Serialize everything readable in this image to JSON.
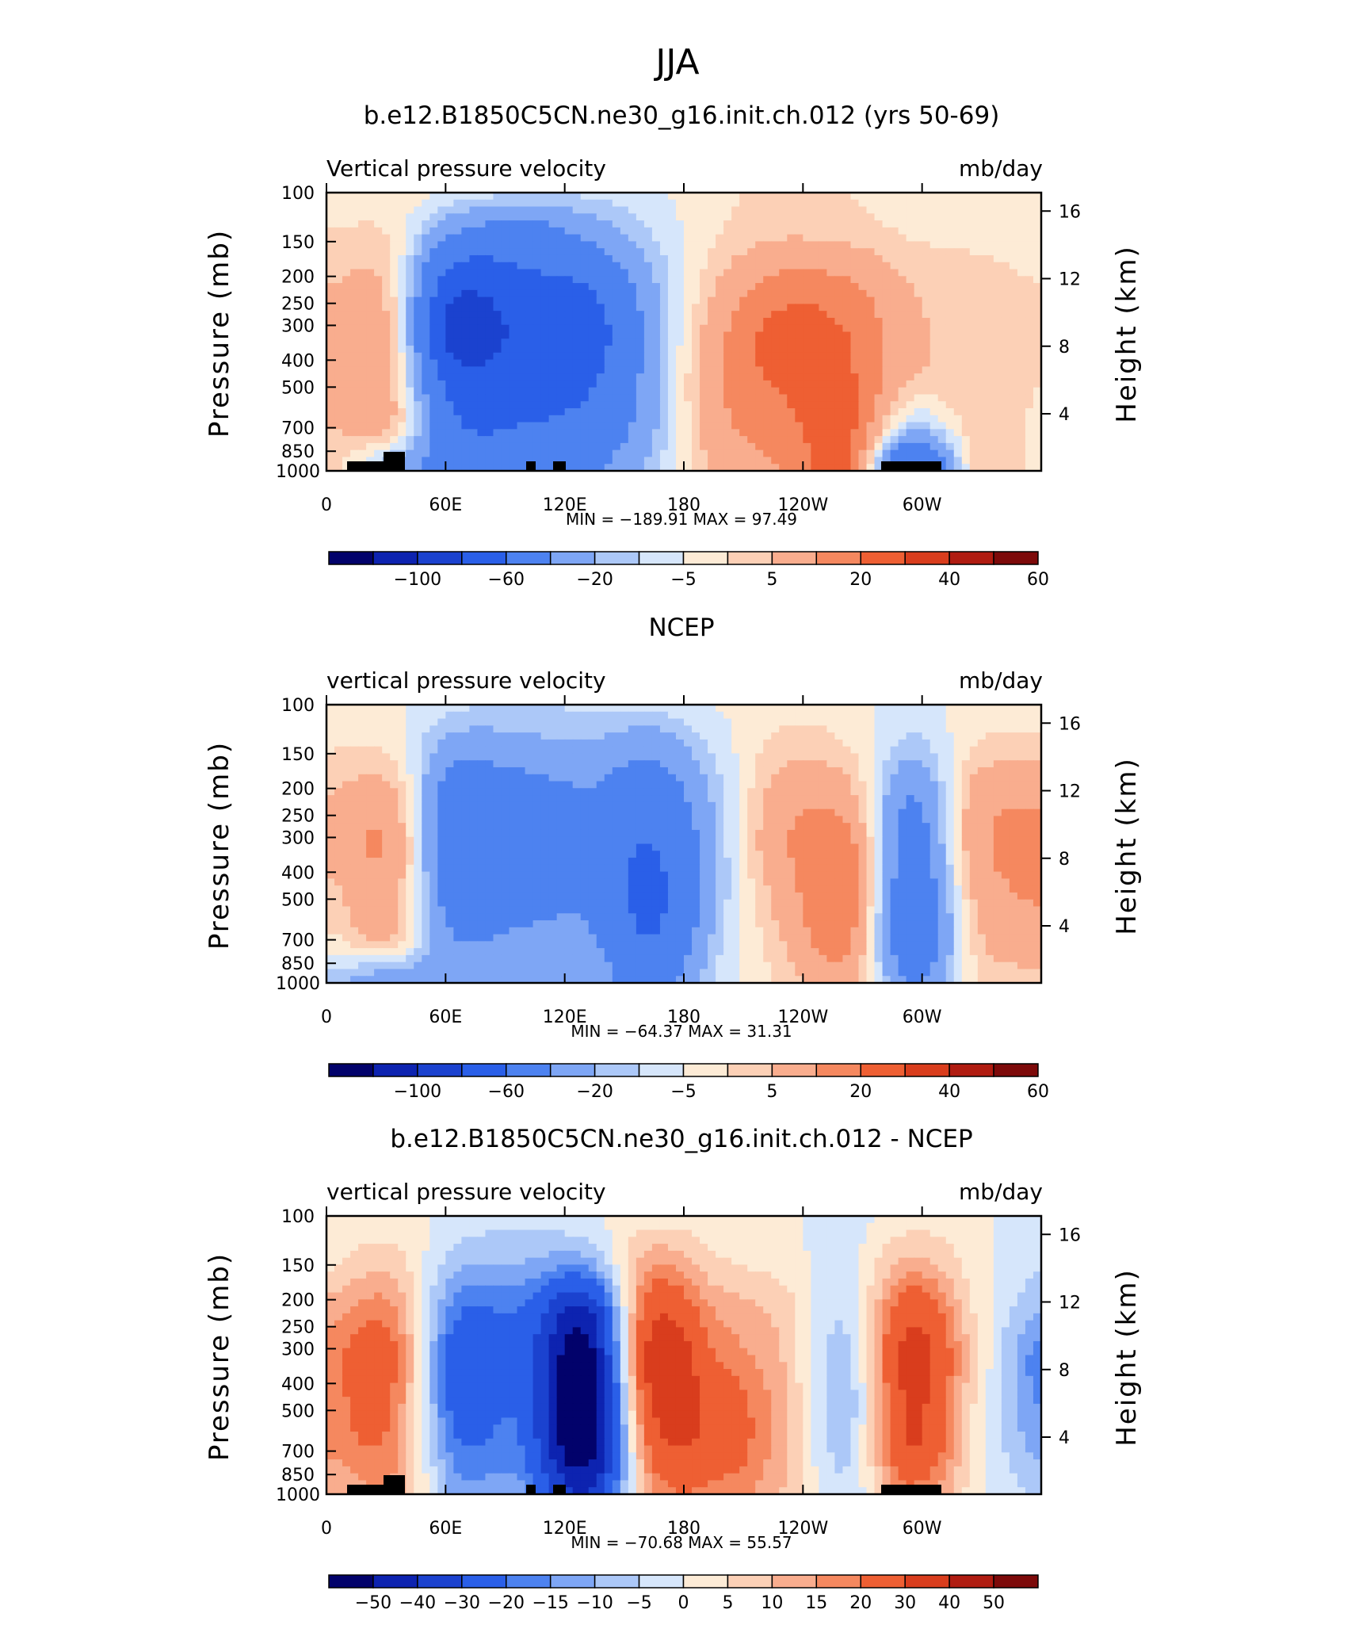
{
  "figure_title": "JJA",
  "chart_data": [
    {
      "type": "contour",
      "title": "b.e12.B1850C5CN.ne30_g16.init.ch.012 (yrs 50-69)",
      "variable": "Vertical pressure velocity",
      "units": "mb/day",
      "xlabel": "",
      "ylabel": "Pressure (mb)",
      "ylabel_right": "Height (km)",
      "x_ticks": [
        "0",
        "60E",
        "120E",
        "180",
        "120W",
        "60W"
      ],
      "x_tick_values": [
        0,
        60,
        120,
        180,
        240,
        300
      ],
      "xlim": [
        0,
        360
      ],
      "y_ticks": [
        100,
        150,
        200,
        250,
        300,
        400,
        500,
        700,
        850,
        1000
      ],
      "ylim": [
        100,
        1000
      ],
      "y_scale": "log",
      "y2_ticks": [
        4,
        8,
        12,
        16
      ],
      "min_max_text": "MIN = −189.91   MAX =   97.49",
      "min": -189.91,
      "max": 97.49,
      "colorbar_labels": [
        "−100",
        "−60",
        "−20",
        "−5",
        "5",
        "20",
        "40",
        "60"
      ],
      "contour_levels": [
        -120,
        -100,
        -80,
        -60,
        -40,
        -20,
        -10,
        -5,
        0,
        5,
        10,
        20,
        30,
        40,
        50,
        60
      ],
      "field": [
        [
          1,
          3,
          -2,
          -5,
          -4,
          -1,
          3,
          8,
          5,
          2,
          1,
          0
        ],
        [
          6,
          4,
          -24,
          -30,
          -20,
          -6,
          5,
          10,
          9,
          5,
          4,
          3
        ],
        [
          10,
          6,
          -55,
          -45,
          -40,
          -12,
          10,
          24,
          22,
          10,
          7,
          5
        ],
        [
          14,
          8,
          -70,
          -55,
          -50,
          -15,
          16,
          34,
          30,
          12,
          8,
          6
        ],
        [
          12,
          9,
          -52,
          -48,
          -44,
          -14,
          18,
          32,
          32,
          10,
          9,
          5
        ],
        [
          10,
          10,
          -38,
          -40,
          -34,
          -12,
          16,
          26,
          34,
          -6,
          8,
          4
        ],
        [
          8,
          -12,
          -28,
          -30,
          -24,
          -8,
          12,
          20,
          30,
          -45,
          6,
          3
        ]
      ]
    },
    {
      "type": "contour",
      "title": "NCEP",
      "variable": "vertical pressure velocity",
      "units": "mb/day",
      "xlabel": "",
      "ylabel": "Pressure (mb)",
      "ylabel_right": "Height (km)",
      "x_ticks": [
        "0",
        "60E",
        "120E",
        "180",
        "120W",
        "60W"
      ],
      "x_tick_values": [
        0,
        60,
        120,
        180,
        240,
        300
      ],
      "xlim": [
        0,
        360
      ],
      "y_ticks": [
        100,
        150,
        200,
        250,
        300,
        400,
        500,
        700,
        850,
        1000
      ],
      "ylim": [
        100,
        1000
      ],
      "y_scale": "log",
      "y2_ticks": [
        4,
        8,
        12,
        16
      ],
      "min_max_text": "MIN = −64.37   MAX =   31.31",
      "min": -64.37,
      "max": 31.31,
      "colorbar_labels": [
        "−100",
        "−60",
        "−20",
        "−5",
        "5",
        "20",
        "40",
        "60"
      ],
      "contour_levels": [
        -120,
        -100,
        -80,
        -60,
        -40,
        -20,
        -10,
        -5,
        0,
        5,
        10,
        20,
        30,
        40,
        50,
        60
      ],
      "field": [
        [
          2,
          1,
          -4,
          -6,
          -4,
          -4,
          0,
          3,
          2,
          -2,
          2,
          3
        ],
        [
          5,
          4,
          -16,
          -14,
          -12,
          -18,
          -4,
          8,
          6,
          -8,
          6,
          8
        ],
        [
          10,
          12,
          -32,
          -28,
          -22,
          -30,
          -8,
          14,
          14,
          -20,
          14,
          18
        ],
        [
          14,
          18,
          -36,
          -32,
          -26,
          -40,
          -10,
          18,
          24,
          -26,
          16,
          24
        ],
        [
          8,
          14,
          -30,
          -28,
          -24,
          -44,
          -10,
          14,
          26,
          -30,
          12,
          22
        ],
        [
          4,
          10,
          -20,
          -18,
          -18,
          -40,
          -8,
          10,
          24,
          -34,
          8,
          16
        ],
        [
          -8,
          -16,
          -14,
          -12,
          -12,
          -26,
          -4,
          6,
          14,
          -20,
          4,
          8
        ]
      ]
    },
    {
      "type": "contour",
      "title": "b.e12.B1850C5CN.ne30_g16.init.ch.012 - NCEP",
      "variable": "vertical pressure velocity",
      "units": "mb/day",
      "xlabel": "",
      "ylabel": "Pressure (mb)",
      "ylabel_right": "Height (km)",
      "x_ticks": [
        "0",
        "60E",
        "120E",
        "180",
        "120W",
        "60W"
      ],
      "x_tick_values": [
        0,
        60,
        120,
        180,
        240,
        300
      ],
      "xlim": [
        0,
        360
      ],
      "y_ticks": [
        100,
        150,
        200,
        250,
        300,
        400,
        500,
        700,
        850,
        1000
      ],
      "ylim": [
        100,
        1000
      ],
      "y_scale": "log",
      "y2_ticks": [
        4,
        8,
        12,
        16
      ],
      "min_max_text": "MIN = −70.68   MAX =   55.57",
      "min": -70.68,
      "max": 55.57,
      "colorbar_labels": [
        "−50",
        "−40",
        "−30",
        "−20",
        "−15",
        "−10",
        "−5",
        "0",
        "5",
        "10",
        "15",
        "20",
        "30",
        "40",
        "50"
      ],
      "contour_levels": [
        -60,
        -50,
        -40,
        -30,
        -20,
        -15,
        -10,
        -5,
        0,
        5,
        10,
        15,
        20,
        30,
        40,
        50,
        60
      ],
      "field": [
        [
          1,
          2,
          -2,
          -4,
          -1,
          3,
          2,
          1,
          -2,
          3,
          1,
          -2
        ],
        [
          4,
          8,
          -8,
          -10,
          -12,
          14,
          6,
          3,
          -2,
          12,
          2,
          -4
        ],
        [
          12,
          16,
          -18,
          -20,
          -40,
          26,
          14,
          8,
          -4,
          26,
          4,
          -10
        ],
        [
          18,
          22,
          -26,
          -24,
          -55,
          34,
          20,
          10,
          -6,
          34,
          6,
          -18
        ],
        [
          18,
          20,
          -24,
          -22,
          -60,
          30,
          26,
          12,
          -8,
          32,
          4,
          -16
        ],
        [
          16,
          18,
          -18,
          -20,
          -58,
          22,
          26,
          12,
          -6,
          30,
          3,
          -12
        ],
        [
          10,
          14,
          -12,
          -14,
          -40,
          14,
          18,
          10,
          -4,
          18,
          2,
          -6
        ]
      ]
    }
  ],
  "colors": {
    "scale_a": [
      "#02026b",
      "#0d23b0",
      "#1b42cf",
      "#2a5fe8",
      "#4d82f0",
      "#7ea6f5",
      "#acc8f8",
      "#d6e6fb",
      "#fdebd6",
      "#fcd0b6",
      "#f9ad8e",
      "#f5885f",
      "#ee5f33",
      "#d93d1d",
      "#b01c11",
      "#7d0a0a"
    ],
    "scale_b": [
      "#02026b",
      "#0d23b0",
      "#1b42cf",
      "#2a5fe8",
      "#4d82f0",
      "#7ea6f5",
      "#acc8f8",
      "#d6e6fb",
      "#fdebd6",
      "#fcd0b6",
      "#f9ad8e",
      "#f5885f",
      "#ee5f33",
      "#d93d1d",
      "#b01c11",
      "#7d0a0a"
    ],
    "topography": "#000000"
  }
}
